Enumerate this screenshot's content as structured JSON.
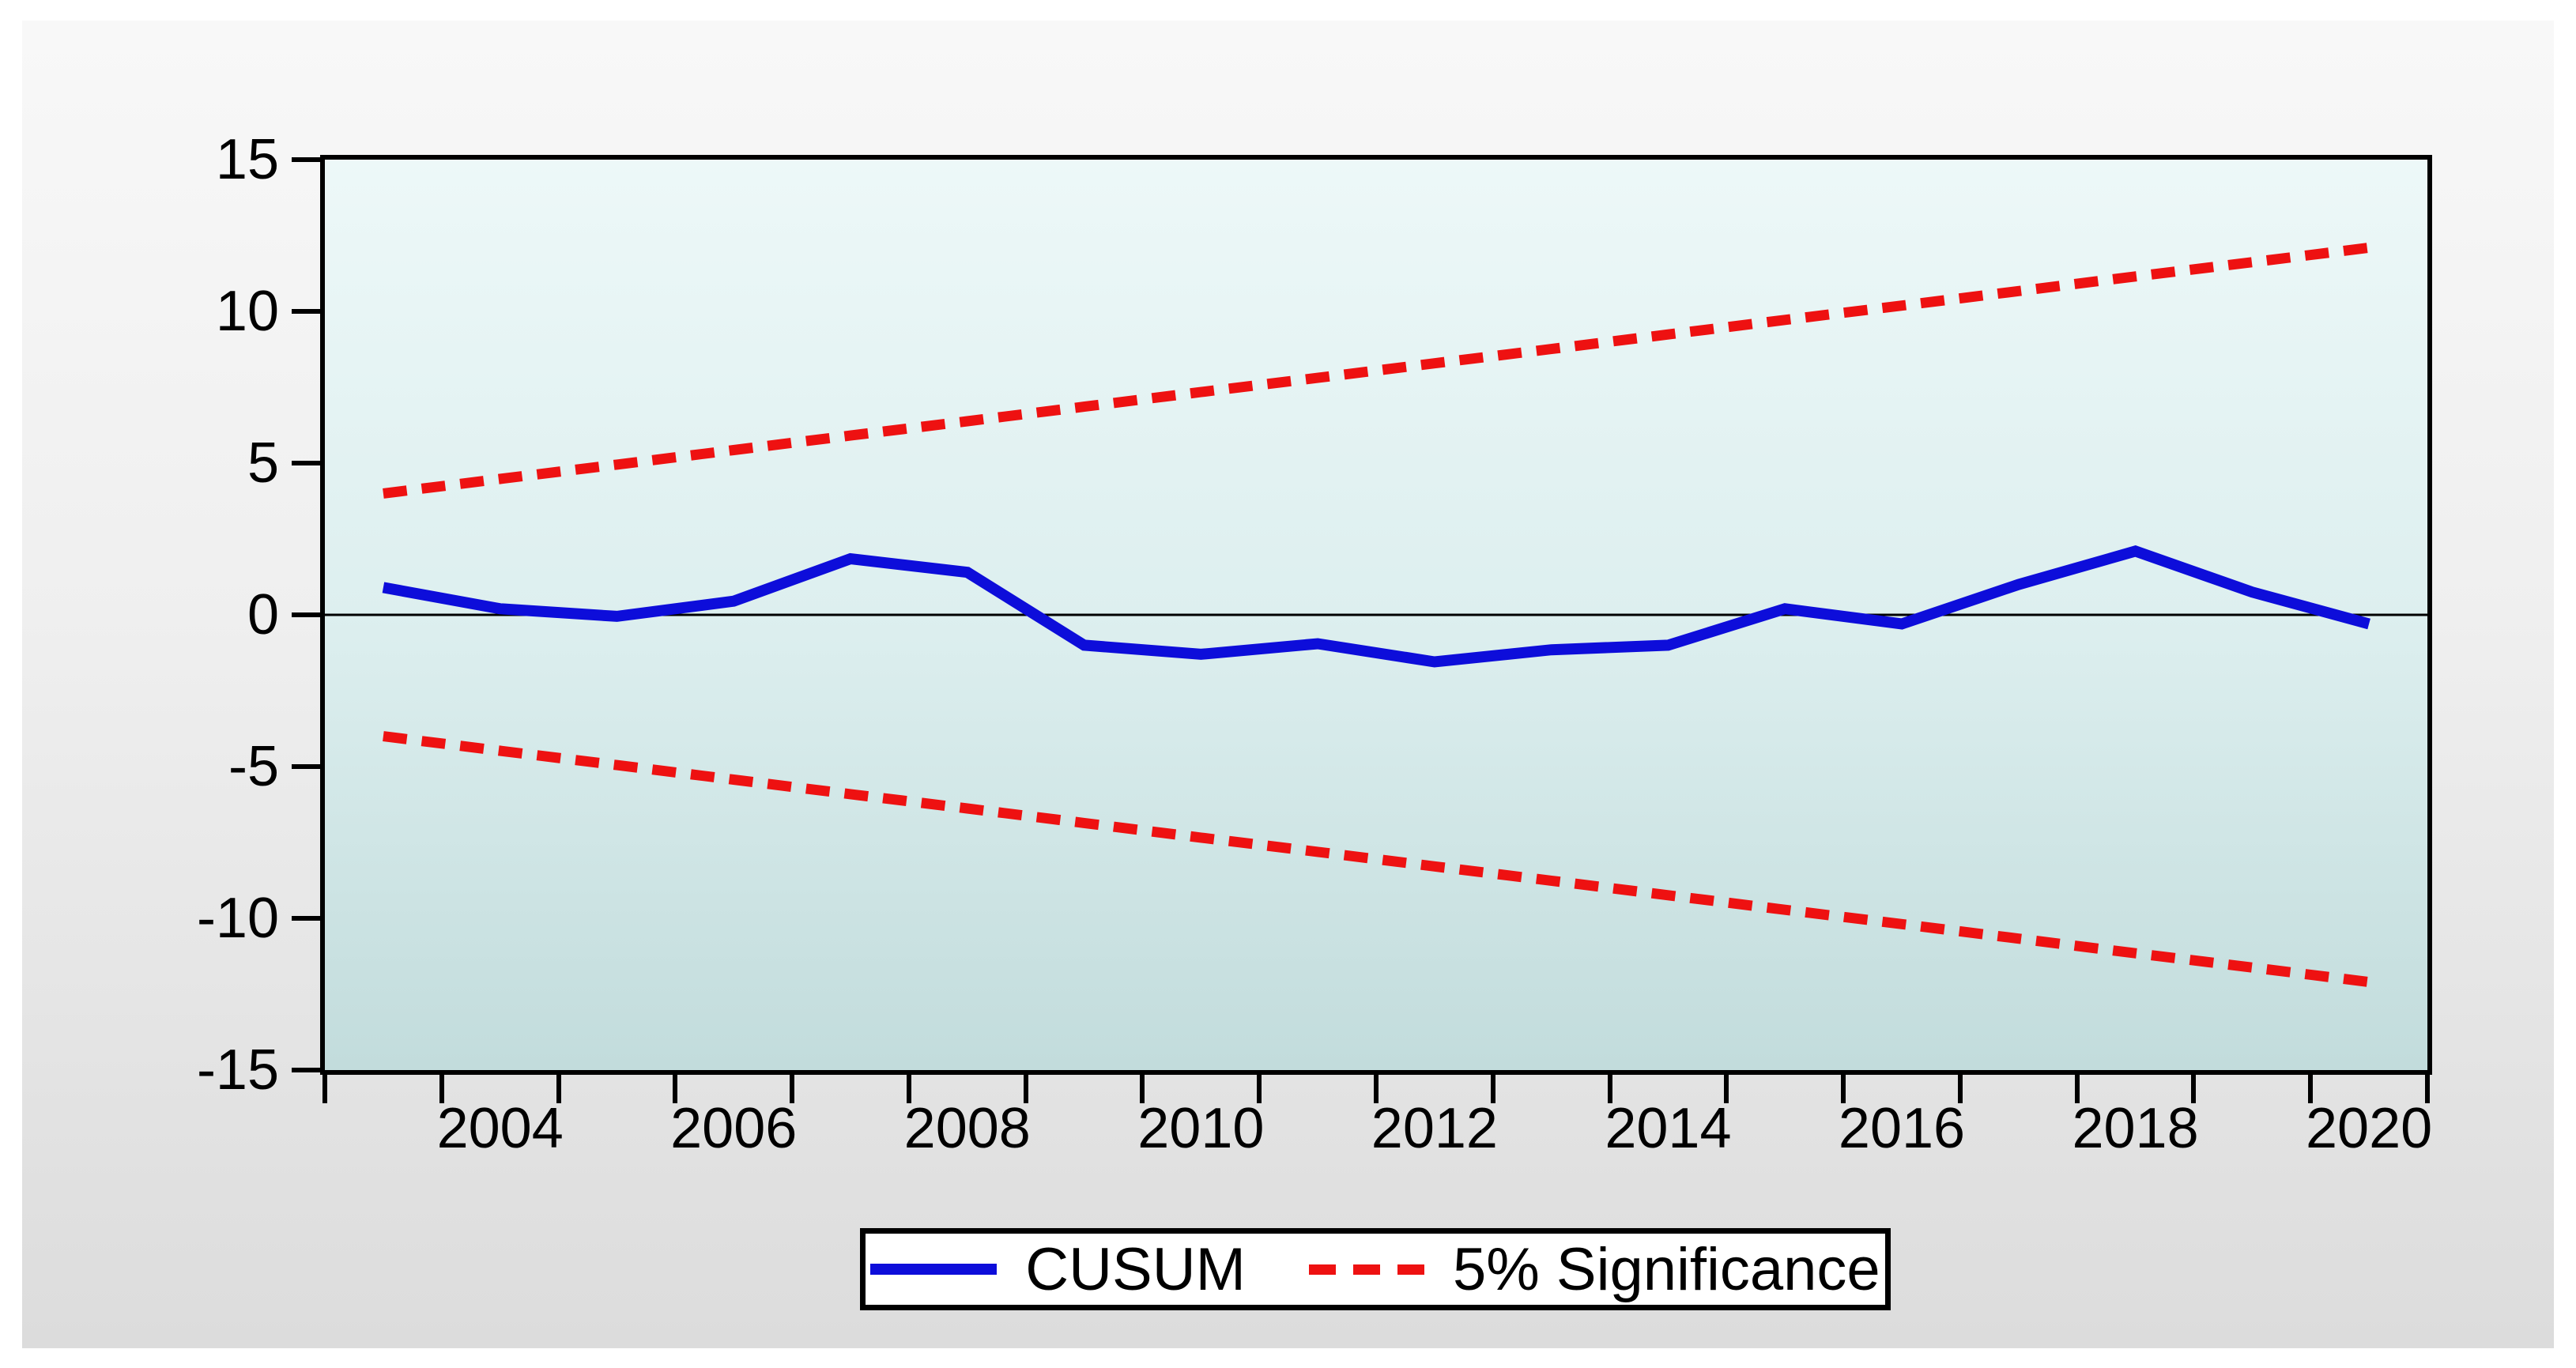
{
  "chart_data": {
    "type": "line",
    "title": "",
    "xlabel": "",
    "ylabel": "",
    "x": [
      2003,
      2004,
      2005,
      2006,
      2007,
      2008,
      2009,
      2010,
      2011,
      2012,
      2013,
      2014,
      2015,
      2016,
      2017,
      2018,
      2019,
      2020
    ],
    "series": [
      {
        "name": "CUSUM",
        "style": "solid",
        "color": "#0d0dda",
        "values": [
          0.9,
          0.2,
          -0.05,
          0.45,
          1.85,
          1.4,
          -1.0,
          -1.3,
          -0.95,
          -1.55,
          -1.15,
          -1.0,
          0.2,
          -0.3,
          1.0,
          2.1,
          0.75,
          -0.3
        ]
      },
      {
        "name": "5% Significance (upper bound)",
        "style": "dashed",
        "color": "#ee1111",
        "values": [
          4.0,
          4.48,
          4.95,
          5.43,
          5.91,
          6.38,
          6.86,
          7.34,
          7.81,
          8.29,
          8.76,
          9.24,
          9.72,
          10.19,
          10.67,
          11.15,
          11.62,
          12.1
        ]
      },
      {
        "name": "5% Significance (lower bound)",
        "style": "dashed",
        "color": "#ee1111",
        "values": [
          -4.0,
          -4.48,
          -4.95,
          -5.43,
          -5.91,
          -6.38,
          -6.86,
          -7.34,
          -7.81,
          -8.29,
          -8.76,
          -9.24,
          -9.72,
          -10.19,
          -10.67,
          -11.15,
          -11.62,
          -12.1
        ]
      }
    ],
    "ylim": [
      -15,
      15
    ],
    "yticks": [
      "15",
      "10",
      "5",
      "0",
      "-5",
      "-10",
      "-15"
    ],
    "ytick_values": [
      15,
      10,
      5,
      0,
      -5,
      -10,
      -15
    ],
    "xtick_labels": [
      "2004",
      "2006",
      "2008",
      "2010",
      "2012",
      "2014",
      "2016",
      "2018",
      "2020"
    ],
    "xtick_label_years": [
      2004,
      2006,
      2008,
      2010,
      2012,
      2014,
      2016,
      2018,
      2020
    ],
    "grid": false,
    "zero_line": true,
    "legend_position": "bottom-center",
    "legend": [
      "CUSUM",
      "5% Significance"
    ],
    "colors": {
      "cusum_line": "#0d0dda",
      "significance_line": "#ee1111",
      "axis": "#000000",
      "zero_line": "#000000",
      "plot_bg_top": "#edf8f8",
      "plot_bg_bottom": "#c2dcdc",
      "card_bg_top": "#f8f8f8",
      "card_bg_bottom": "#dcdcdc",
      "legend_bg": "#ffffff"
    }
  }
}
